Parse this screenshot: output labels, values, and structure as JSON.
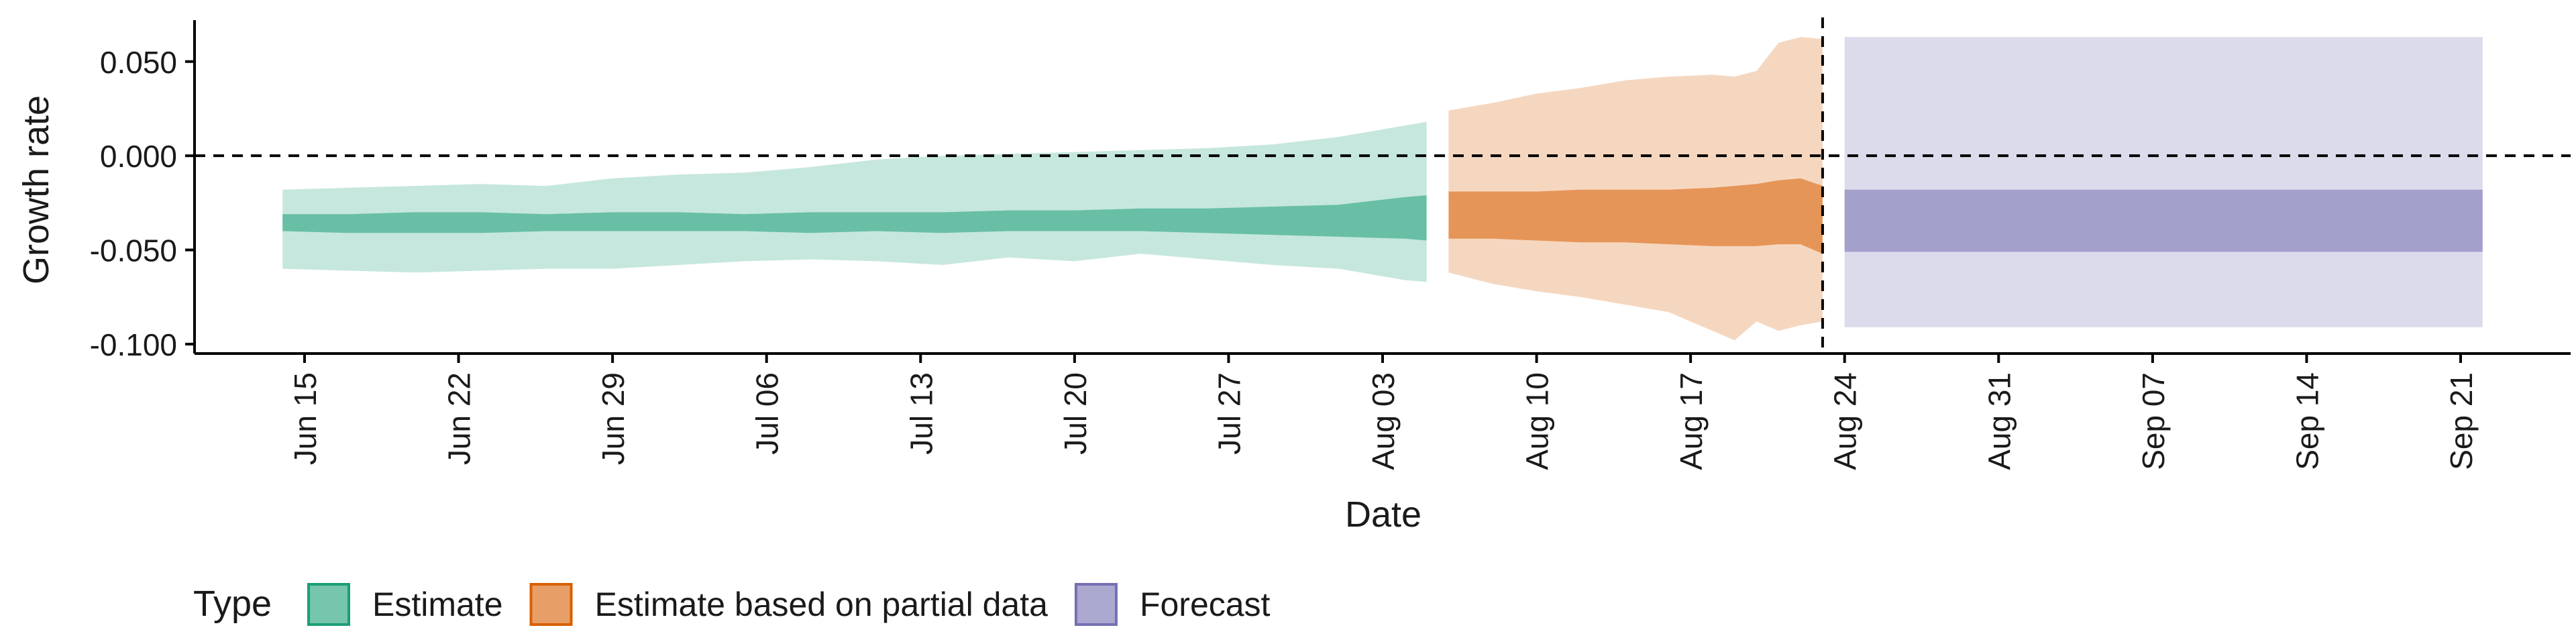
{
  "chart_data": {
    "type": "area",
    "xlabel": "Date",
    "ylabel": "Growth rate",
    "ylim": [
      -0.105,
      0.072
    ],
    "yticks": [
      -0.1,
      -0.05,
      0.0,
      0.05
    ],
    "ytick_labels": [
      "-0.100",
      "-0.050",
      "0.000",
      "0.050"
    ],
    "xlim": [
      "2020-06-10",
      "2020-09-26"
    ],
    "xticks": [
      "2020-06-15",
      "2020-06-22",
      "2020-06-29",
      "2020-07-06",
      "2020-07-13",
      "2020-07-20",
      "2020-07-27",
      "2020-08-03",
      "2020-08-10",
      "2020-08-17",
      "2020-08-24",
      "2020-08-31",
      "2020-09-07",
      "2020-09-14",
      "2020-09-21"
    ],
    "xtick_labels": [
      "Jun 15",
      "Jun 22",
      "Jun 29",
      "Jul 06",
      "Jul 13",
      "Jul 20",
      "Jul 27",
      "Aug 03",
      "Aug 10",
      "Aug 17",
      "Aug 24",
      "Aug 31",
      "Sep 07",
      "Sep 14",
      "Sep 21"
    ],
    "hline": 0.0,
    "vline": "2020-08-23",
    "grid": false,
    "legend": {
      "title": "Type",
      "placement": "bottom-left",
      "entries": [
        "Estimate",
        "Estimate based on partial data",
        "Forecast"
      ]
    },
    "series": [
      {
        "name": "Estimate",
        "fill": "#1b9e77",
        "x": [
          "2020-06-14",
          "2020-06-17",
          "2020-06-20",
          "2020-06-23",
          "2020-06-26",
          "2020-06-29",
          "2020-07-02",
          "2020-07-05",
          "2020-07-08",
          "2020-07-11",
          "2020-07-14",
          "2020-07-17",
          "2020-07-20",
          "2020-07-23",
          "2020-07-26",
          "2020-07-29",
          "2020-08-01",
          "2020-08-04",
          "2020-08-05"
        ],
        "lower_90": [
          -0.06,
          -0.061,
          -0.062,
          -0.061,
          -0.06,
          -0.06,
          -0.058,
          -0.056,
          -0.055,
          -0.056,
          -0.058,
          -0.054,
          -0.056,
          -0.052,
          -0.055,
          -0.058,
          -0.06,
          -0.066,
          -0.067
        ],
        "lower_50": [
          -0.04,
          -0.041,
          -0.041,
          -0.041,
          -0.04,
          -0.04,
          -0.04,
          -0.04,
          -0.041,
          -0.04,
          -0.041,
          -0.04,
          -0.04,
          -0.04,
          -0.041,
          -0.042,
          -0.043,
          -0.044,
          -0.045
        ],
        "upper_50": [
          -0.031,
          -0.031,
          -0.03,
          -0.03,
          -0.031,
          -0.03,
          -0.03,
          -0.031,
          -0.03,
          -0.03,
          -0.03,
          -0.029,
          -0.029,
          -0.028,
          -0.028,
          -0.027,
          -0.026,
          -0.022,
          -0.021
        ],
        "upper_90": [
          -0.018,
          -0.017,
          -0.016,
          -0.015,
          -0.016,
          -0.012,
          -0.01,
          -0.009,
          -0.006,
          -0.002,
          0.0,
          0.001,
          0.002,
          0.003,
          0.004,
          0.006,
          0.01,
          0.016,
          0.018
        ]
      },
      {
        "name": "Estimate based on partial data",
        "fill": "#d95f02",
        "x": [
          "2020-08-06",
          "2020-08-08",
          "2020-08-10",
          "2020-08-12",
          "2020-08-14",
          "2020-08-16",
          "2020-08-18",
          "2020-08-19",
          "2020-08-20",
          "2020-08-21",
          "2020-08-22",
          "2020-08-23"
        ],
        "lower_90": [
          -0.062,
          -0.068,
          -0.072,
          -0.075,
          -0.079,
          -0.083,
          -0.093,
          -0.098,
          -0.088,
          -0.093,
          -0.09,
          -0.088
        ],
        "lower_50": [
          -0.044,
          -0.044,
          -0.045,
          -0.046,
          -0.046,
          -0.047,
          -0.048,
          -0.048,
          -0.048,
          -0.047,
          -0.047,
          -0.052
        ],
        "upper_50": [
          -0.019,
          -0.019,
          -0.019,
          -0.018,
          -0.018,
          -0.018,
          -0.017,
          -0.016,
          -0.015,
          -0.013,
          -0.012,
          -0.016
        ],
        "upper_90": [
          0.024,
          0.028,
          0.033,
          0.036,
          0.04,
          0.042,
          0.043,
          0.042,
          0.045,
          0.06,
          0.063,
          0.062
        ]
      },
      {
        "name": "Forecast",
        "fill": "#7570b3",
        "x": [
          "2020-08-24",
          "2020-09-22"
        ],
        "lower_90": [
          -0.091,
          -0.091
        ],
        "lower_50": [
          -0.051,
          -0.051
        ],
        "upper_50": [
          -0.018,
          -0.018
        ],
        "upper_90": [
          0.063,
          0.063
        ]
      }
    ]
  }
}
